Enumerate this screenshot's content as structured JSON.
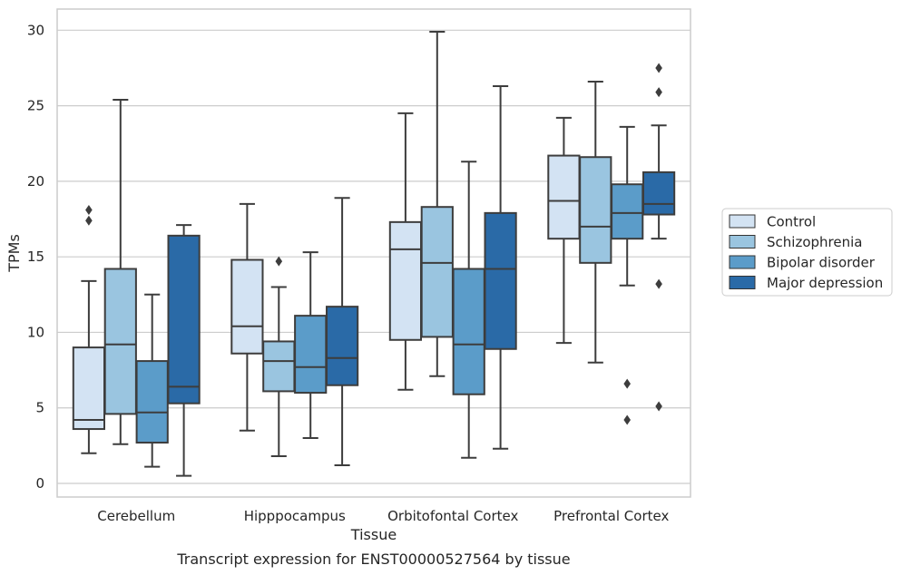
{
  "caption": "Transcript expression for ENST00000527564 by tissue",
  "chart_data": {
    "type": "box",
    "xlabel": "Tissue",
    "ylabel": "TPMs",
    "ylim": [
      -0.9,
      31.4
    ],
    "yticks": [
      0,
      5,
      10,
      15,
      20,
      25,
      30
    ],
    "grid": "horizontal",
    "legend_position": "right-outside",
    "categories": [
      "Cerebellum",
      "Hipppocampus",
      "Orbitofontal Cortex",
      "Prefrontal Cortex"
    ],
    "series": [
      {
        "name": "Control",
        "color": "#d3e3f3",
        "boxes": [
          {
            "whislo": 2.0,
            "q1": 3.6,
            "med": 4.2,
            "q3": 9.0,
            "whishi": 13.4,
            "fliers": [
              17.4,
              18.1
            ]
          },
          {
            "whislo": 3.5,
            "q1": 8.6,
            "med": 10.4,
            "q3": 14.8,
            "whishi": 18.5,
            "fliers": []
          },
          {
            "whislo": 6.2,
            "q1": 9.5,
            "med": 15.5,
            "q3": 17.3,
            "whishi": 24.5,
            "fliers": []
          },
          {
            "whislo": 9.3,
            "q1": 16.2,
            "med": 18.7,
            "q3": 21.7,
            "whishi": 24.2,
            "fliers": []
          }
        ]
      },
      {
        "name": "Schizophrenia",
        "color": "#9ac5e0",
        "boxes": [
          {
            "whislo": 2.6,
            "q1": 4.6,
            "med": 9.2,
            "q3": 14.2,
            "whishi": 25.4,
            "fliers": []
          },
          {
            "whislo": 1.8,
            "q1": 6.1,
            "med": 8.1,
            "q3": 9.4,
            "whishi": 13.0,
            "fliers": [
              14.7
            ]
          },
          {
            "whislo": 7.1,
            "q1": 9.7,
            "med": 14.6,
            "q3": 18.3,
            "whishi": 29.9,
            "fliers": []
          },
          {
            "whislo": 8.0,
            "q1": 14.6,
            "med": 17.0,
            "q3": 21.6,
            "whishi": 26.6,
            "fliers": []
          }
        ]
      },
      {
        "name": "Bipolar disorder",
        "color": "#5b9cc9",
        "boxes": [
          {
            "whislo": 1.1,
            "q1": 2.7,
            "med": 4.7,
            "q3": 8.1,
            "whishi": 12.5,
            "fliers": []
          },
          {
            "whislo": 3.0,
            "q1": 6.0,
            "med": 7.7,
            "q3": 11.1,
            "whishi": 15.3,
            "fliers": []
          },
          {
            "whislo": 1.7,
            "q1": 5.9,
            "med": 9.2,
            "q3": 14.2,
            "whishi": 21.3,
            "fliers": []
          },
          {
            "whislo": 13.1,
            "q1": 16.2,
            "med": 17.9,
            "q3": 19.8,
            "whishi": 23.6,
            "fliers": [
              6.6,
              4.2
            ]
          }
        ]
      },
      {
        "name": "Major depression",
        "color": "#2a6aa7",
        "boxes": [
          {
            "whislo": 0.5,
            "q1": 5.3,
            "med": 6.4,
            "q3": 16.4,
            "whishi": 17.1,
            "fliers": []
          },
          {
            "whislo": 1.2,
            "q1": 6.5,
            "med": 8.3,
            "q3": 11.7,
            "whishi": 18.9,
            "fliers": []
          },
          {
            "whislo": 2.3,
            "q1": 8.9,
            "med": 14.2,
            "q3": 17.9,
            "whishi": 26.3,
            "fliers": []
          },
          {
            "whislo": 16.2,
            "q1": 17.8,
            "med": 18.5,
            "q3": 20.6,
            "whishi": 23.7,
            "fliers": [
              27.5,
              25.9,
              13.2,
              5.1
            ]
          }
        ]
      }
    ]
  }
}
